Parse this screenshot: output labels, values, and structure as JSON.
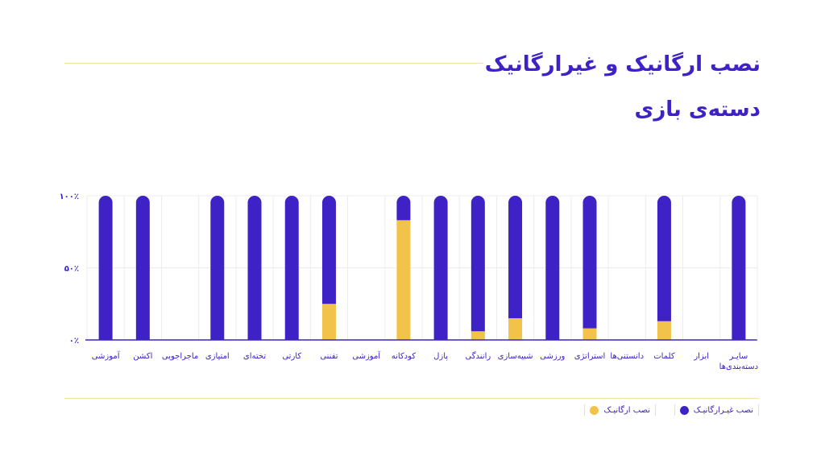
{
  "title": {
    "line1": "نصب ارگانیک و غیرارگانیک",
    "line2": "دسته‌ی بازی"
  },
  "colors": {
    "non_organic": "#3f22c6",
    "organic": "#f2c34b",
    "grid": "#ececec",
    "axis": "#3f22c6",
    "accent_line": "#f6dfa9"
  },
  "legend": {
    "non_organic": "نصب غیـرارگانیـک",
    "organic": "نصب ارگانیـک"
  },
  "chart_data": {
    "type": "bar",
    "stacked": true,
    "ylim": [
      0,
      100
    ],
    "yticks": [
      "۰٪",
      "۵۰٪",
      "۱۰۰٪"
    ],
    "categories": [
      "آموزشی",
      "اکشن",
      "ماجراجویی",
      "امتیازی",
      "تخته‌ای",
      "کارتی",
      "تفننی",
      "آموزشی",
      "کودکانه",
      "پازل",
      "رانندگی",
      "شبیه‌سازی",
      "ورزشی",
      "استراتژی",
      "دانستنی‌ها",
      "کلمات",
      "ابزار",
      "سایـر\nدسته‌بندی‌ها"
    ],
    "series": [
      {
        "name": "نصب ارگانیـک",
        "values": [
          0,
          0,
          0,
          0,
          0,
          0,
          25,
          0,
          83,
          0,
          6,
          15,
          0,
          8,
          0,
          13,
          0,
          0
        ]
      },
      {
        "name": "نصب غیـرارگانیـک",
        "values": [
          100,
          100,
          0,
          100,
          100,
          100,
          75,
          0,
          17,
          100,
          94,
          85,
          100,
          92,
          0,
          87,
          0,
          100
        ]
      }
    ],
    "grid": true,
    "legend_position": "bottom-right"
  }
}
